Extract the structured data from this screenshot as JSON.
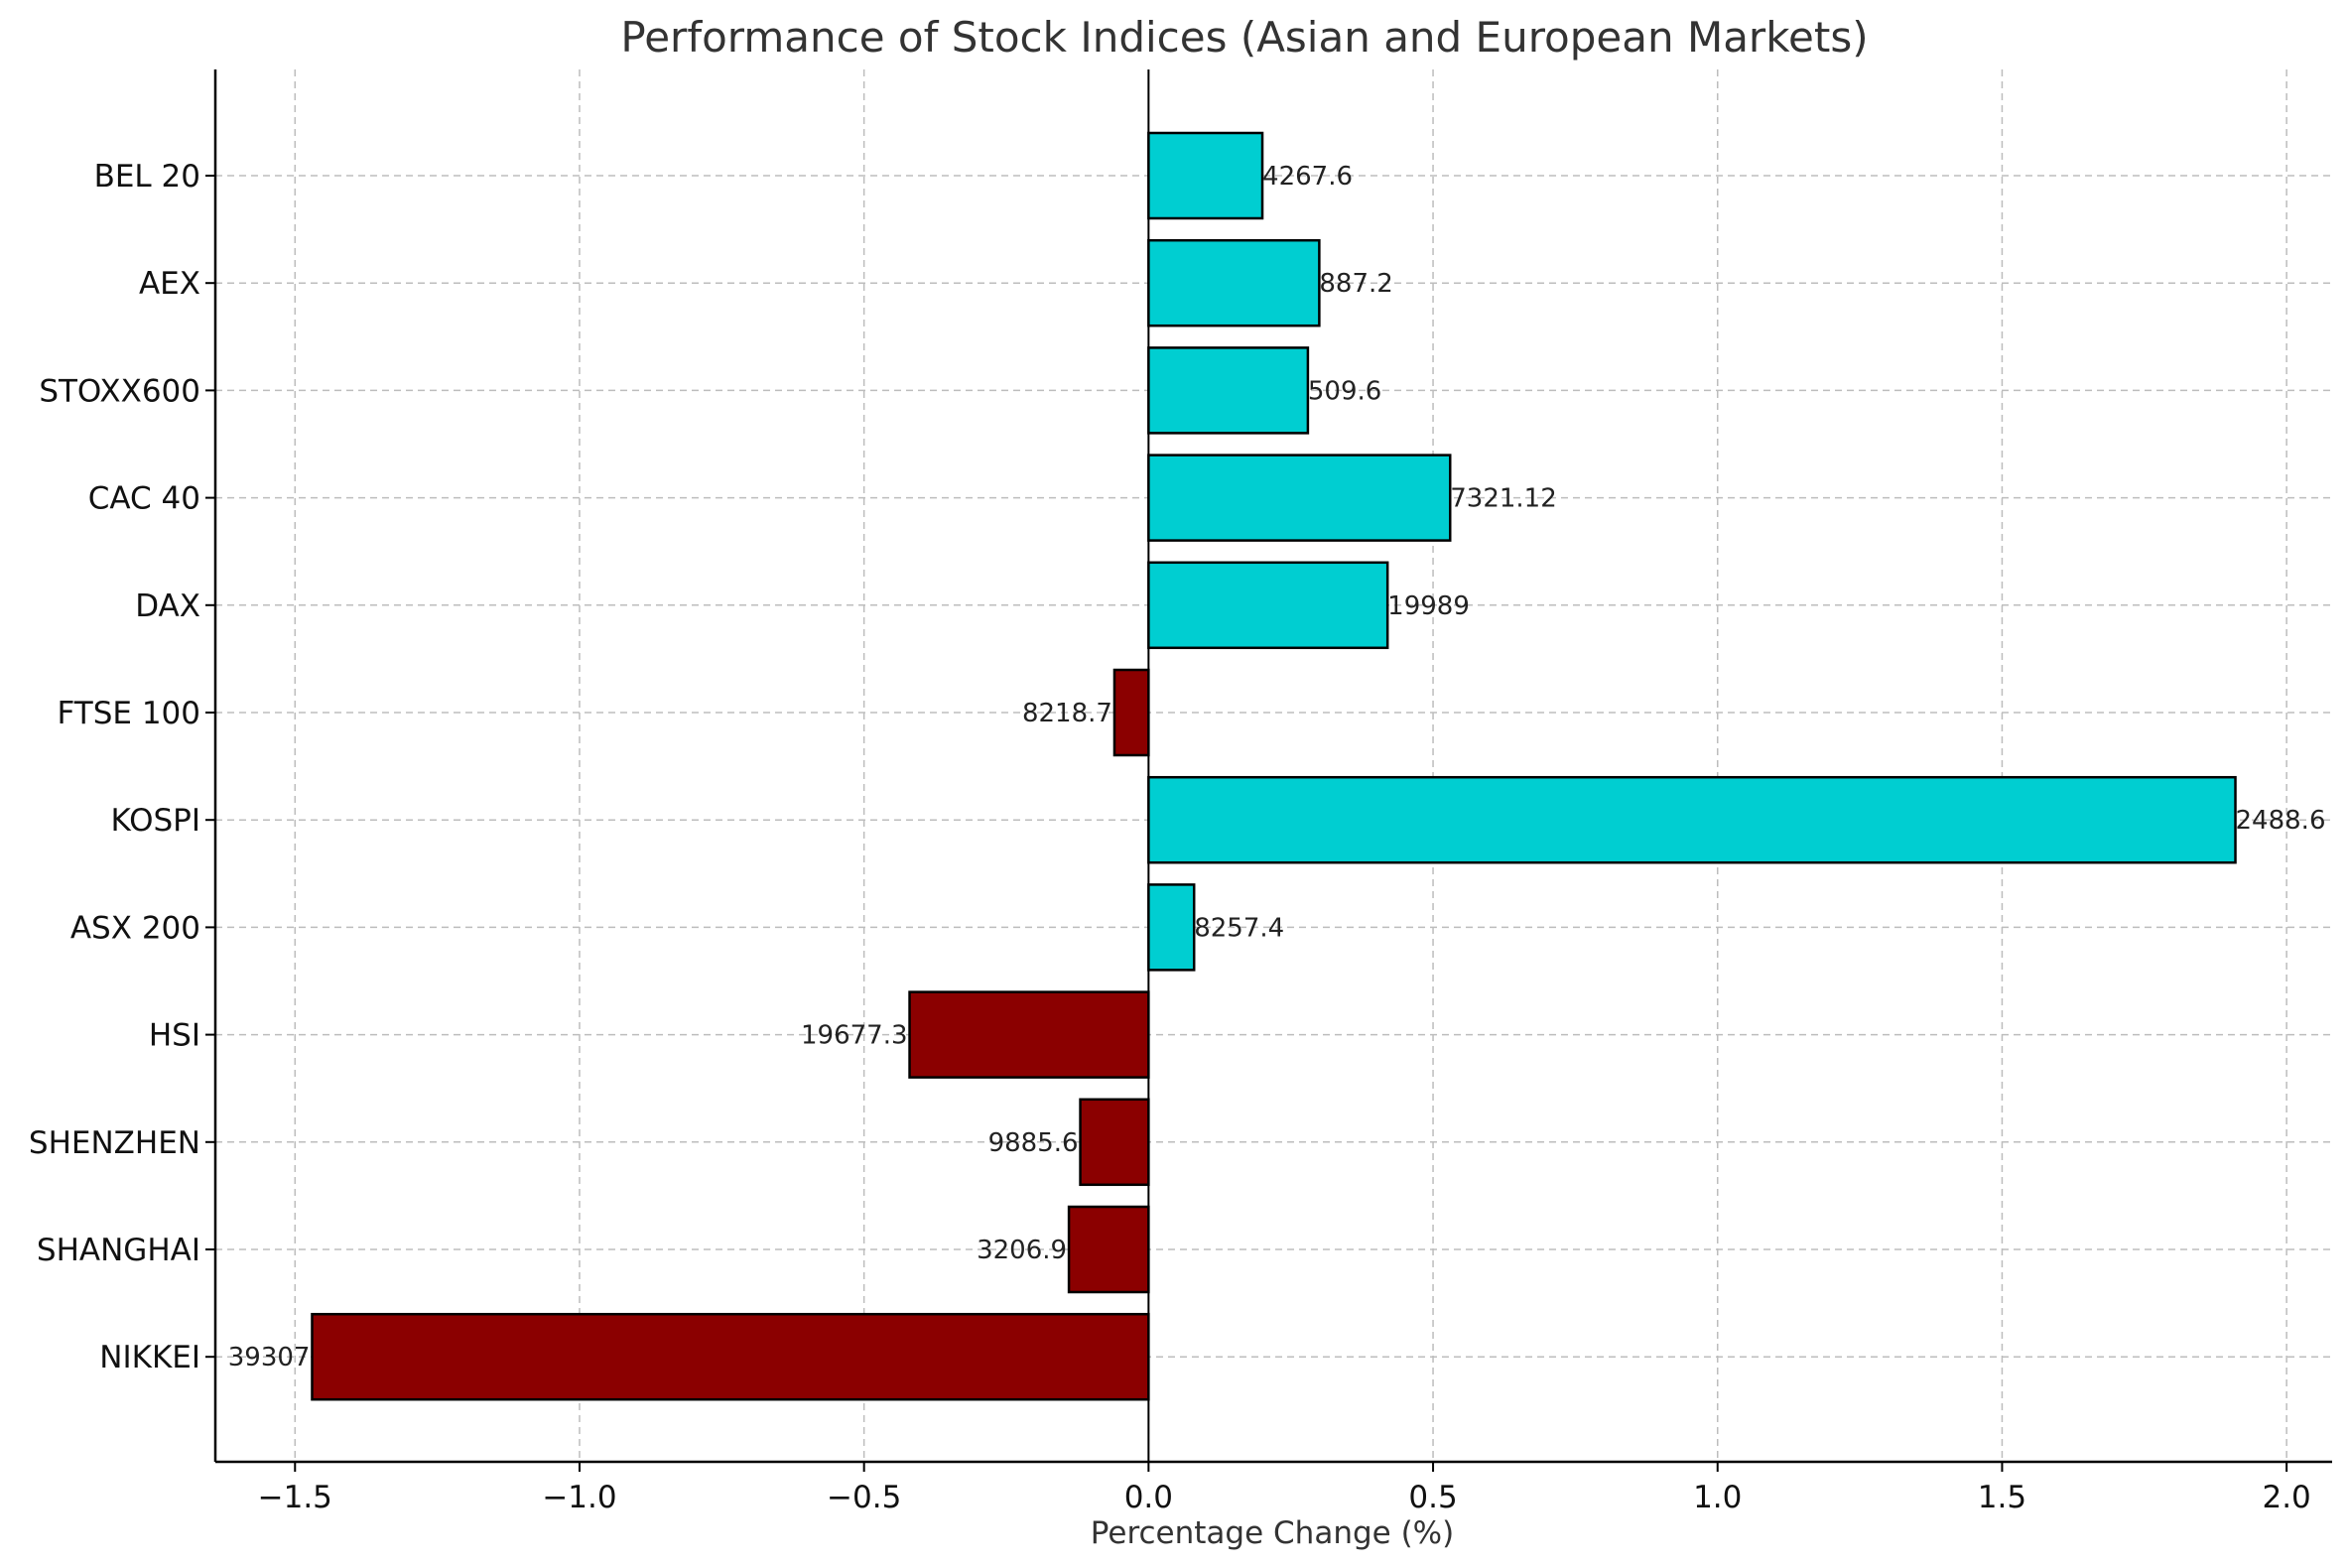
{
  "chart_data": {
    "type": "bar",
    "orientation": "horizontal",
    "title": "Performance of Stock Indices (Asian and European Markets)",
    "xlabel": "Percentage Change (%)",
    "ylabel": "",
    "xlim": [
      -1.64,
      2.08
    ],
    "xticks": [
      -1.5,
      -1.0,
      -0.5,
      0.0,
      0.5,
      1.0,
      1.5,
      2.0
    ],
    "xtick_labels": [
      "−1.5",
      "−1.0",
      "−0.5",
      "0.0",
      "0.5",
      "1.0",
      "1.5",
      "2.0"
    ],
    "grid": true,
    "categories": [
      "NIKKEI",
      "SHANGHAI",
      "SHENZHEN",
      "HSI",
      "ASX 200",
      "KOSPI",
      "FTSE 100",
      "DAX",
      "CAC 40",
      "STOXX600",
      "AEX",
      "BEL 20"
    ],
    "values": [
      -1.47,
      -0.14,
      -0.12,
      -0.42,
      0.08,
      1.91,
      -0.06,
      0.42,
      0.53,
      0.28,
      0.3,
      0.2
    ],
    "data_labels": [
      "39307",
      "3206.9",
      "9885.6",
      "19677.3",
      "8257.4",
      "2488.6",
      "8218.7",
      "19989",
      "7321.12",
      "509.6",
      "887.2",
      "4267.6"
    ],
    "colors": {
      "positive": "#00CED1",
      "negative": "#8B0000"
    }
  }
}
